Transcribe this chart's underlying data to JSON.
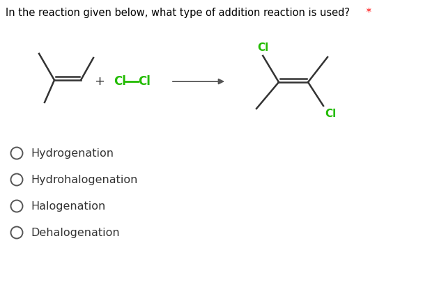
{
  "title": "In the reaction given below, what type of addition reaction is used?",
  "title_color": "#000000",
  "asterisk": " *",
  "asterisk_color": "#ff0000",
  "cl_color": "#22bb00",
  "bond_color": "#333333",
  "arrow_color": "#555555",
  "options": [
    "Hydrogenation",
    "Hydrohalogenation",
    "Halogenation",
    "Dehalogenation"
  ],
  "option_color": "#333333",
  "circle_color": "#555555",
  "background_color": "#ffffff",
  "fig_width": 6.4,
  "fig_height": 4.05,
  "dpi": 100
}
